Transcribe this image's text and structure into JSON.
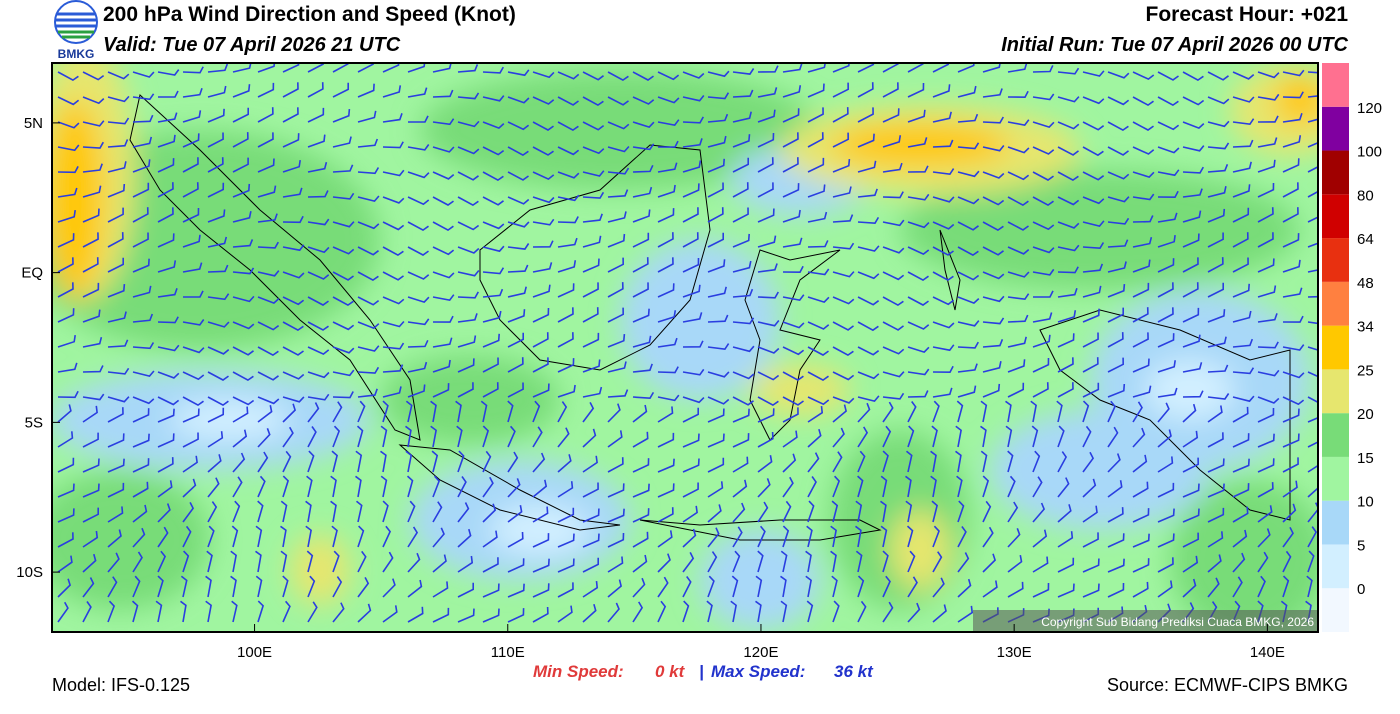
{
  "header": {
    "logo_text": "BMKG",
    "title": "200 hPa Wind Direction and Speed (Knot)",
    "valid": "Valid: Tue 07 April 2026 21 UTC",
    "forecast_hour": "Forecast Hour: +021",
    "initial_run": "Initial Run: Tue 07 April 2026 00 UTC"
  },
  "map": {
    "lonlim": [
      92,
      142
    ],
    "latlim": [
      -12,
      7
    ],
    "lon_ticks": [
      {
        "value": 100,
        "label": "100E"
      },
      {
        "value": 110,
        "label": "110E"
      },
      {
        "value": 120,
        "label": "120E"
      },
      {
        "value": 130,
        "label": "130E"
      },
      {
        "value": 140,
        "label": "140E"
      }
    ],
    "lat_ticks": [
      {
        "value": 5,
        "label": "5N"
      },
      {
        "value": 0,
        "label": "EQ"
      },
      {
        "value": -5,
        "label": "5S"
      },
      {
        "value": -10,
        "label": "10S"
      }
    ],
    "copyright": "Copyright Sub Bidang Prediksi Cuaca BMKG, 2026"
  },
  "colorbar": {
    "levels": [
      0,
      5,
      10,
      15,
      20,
      25,
      34,
      48,
      64,
      80,
      100,
      120
    ],
    "colors": [
      "#f2f8ff",
      "#d2efff",
      "#a8d8f8",
      "#a0f5a0",
      "#78dc78",
      "#e6e66e",
      "#ffc800",
      "#ff8040",
      "#e83010",
      "#d00000",
      "#a00000",
      "#8000a0",
      "#ff7090"
    ]
  },
  "footer": {
    "model": "Model: IFS-0.125",
    "min_speed_label": "Min Speed:",
    "min_speed": "0 kt",
    "separator": "|",
    "max_speed_label": "Max Speed:",
    "max_speed": "36 kt",
    "source": "Source: ECMWF-CIPS BMKG"
  }
}
